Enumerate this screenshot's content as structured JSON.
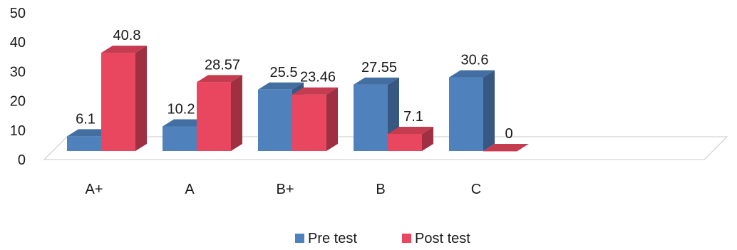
{
  "chart_data": {
    "type": "bar",
    "title": "",
    "xlabel": "",
    "ylabel": "",
    "categories": [
      "A+",
      "A",
      "B+",
      "B",
      "C"
    ],
    "series": [
      {
        "name": "Pre test",
        "values": [
          6.1,
          10.2,
          25.5,
          27.55,
          30.6
        ],
        "color": "#4f81bd"
      },
      {
        "name": "Post test",
        "values": [
          40.8,
          28.57,
          23.46,
          7.1,
          0
        ],
        "color": "#e8475f"
      }
    ],
    "data_labels": [
      [
        "6.1",
        "10.2",
        "25.5",
        "27.55",
        "30.6"
      ],
      [
        "40.8",
        "28.57",
        "23.46",
        "7.1",
        "0"
      ]
    ],
    "ylim": [
      0,
      50
    ],
    "yticks": [
      "0",
      "10",
      "20",
      "30",
      "40",
      "50"
    ],
    "grid": false,
    "legend_position": "bottom",
    "style": "3d-clustered-column"
  }
}
